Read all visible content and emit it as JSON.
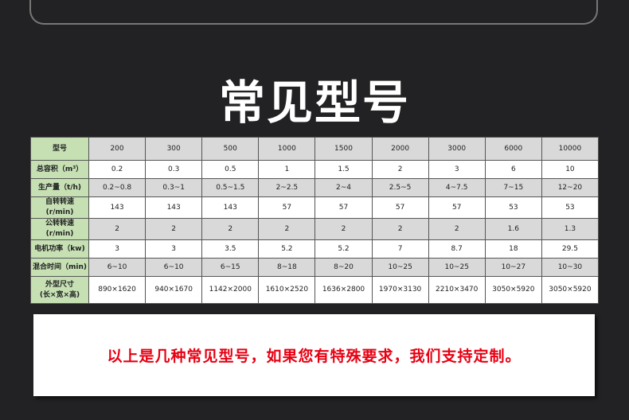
{
  "title": "常见型号",
  "table": {
    "rows": [
      {
        "label": "型号",
        "values": [
          "200",
          "300",
          "500",
          "1000",
          "1500",
          "2000",
          "3000",
          "6000",
          "10000"
        ]
      },
      {
        "label": "总容积（m³）",
        "values": [
          "0.2",
          "0.3",
          "0.5",
          "1",
          "1.5",
          "2",
          "3",
          "6",
          "10"
        ]
      },
      {
        "label": "生产量（t/h)",
        "values": [
          "0.2~0.8",
          "0.3~1",
          "0.5~1.5",
          "2~2.5",
          "2~4",
          "2.5~5",
          "4~7.5",
          "7~15",
          "12~20"
        ]
      },
      {
        "label": "自转转速\n(r/min)",
        "values": [
          "143",
          "143",
          "143",
          "57",
          "57",
          "57",
          "57",
          "53",
          "53"
        ]
      },
      {
        "label": "公转转速\n(r/min)",
        "values": [
          "2",
          "2",
          "2",
          "2",
          "2",
          "2",
          "2",
          "1.6",
          "1.3"
        ]
      },
      {
        "label": "电机功率（kw)",
        "values": [
          "3",
          "3",
          "3.5",
          "5.2",
          "5.2",
          "7",
          "8.7",
          "18",
          "29.5"
        ]
      },
      {
        "label": "混合时间（min)",
        "values": [
          "6~10",
          "6~10",
          "6~15",
          "8~18",
          "8~20",
          "10~25",
          "10~25",
          "10~27",
          "10~30"
        ]
      },
      {
        "label": "外型尺寸\n(长×宽×高)",
        "values": [
          "890×1620",
          "940×1670",
          "1142×2000",
          "1610×2520",
          "1636×2800",
          "1970×3130",
          "2210×3470",
          "3050×5920",
          "3050×5920"
        ]
      }
    ]
  },
  "notice": "以上是几种常见型号，如果您有特殊要求，我们支持定制。",
  "colors": {
    "background": "#222224",
    "label_cell": "#c6e0b4",
    "stripe": "#d9d9d9",
    "notice_text": "#e60012"
  }
}
